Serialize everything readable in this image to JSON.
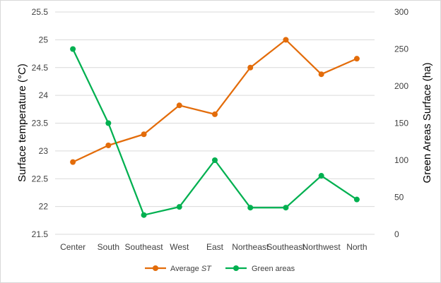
{
  "chart_data": {
    "type": "line",
    "title": "",
    "categories": [
      "Center",
      "South",
      "Southeast",
      "West",
      "East",
      "Northeast",
      "Southeast",
      "Northwest",
      "North"
    ],
    "ylabel_left": "Surface temperature (°C)",
    "ylabel_right": "Green Areas Surface (ha)",
    "ylim_left": [
      21.5,
      25.5
    ],
    "yticks_left": [
      "21.5",
      "22",
      "22.5",
      "23",
      "23.5",
      "24",
      "24.5",
      "25",
      "25.5"
    ],
    "ylim_right": [
      0,
      300
    ],
    "yticks_right": [
      "0",
      "50",
      "100",
      "150",
      "200",
      "250",
      "300"
    ],
    "grid": true,
    "legend_position": "bottom",
    "series": [
      {
        "name": "Average ST",
        "legend_prefix": "Average ",
        "legend_italic": "ST",
        "axis": "left",
        "color": "#e36c0a",
        "values": [
          22.8,
          23.1,
          23.3,
          23.82,
          23.66,
          24.5,
          25.0,
          24.38,
          24.66
        ]
      },
      {
        "name": "Green areas",
        "axis": "right",
        "color": "#00b050",
        "values": [
          250,
          150,
          26,
          37,
          100,
          36,
          36,
          79,
          47
        ]
      }
    ]
  }
}
